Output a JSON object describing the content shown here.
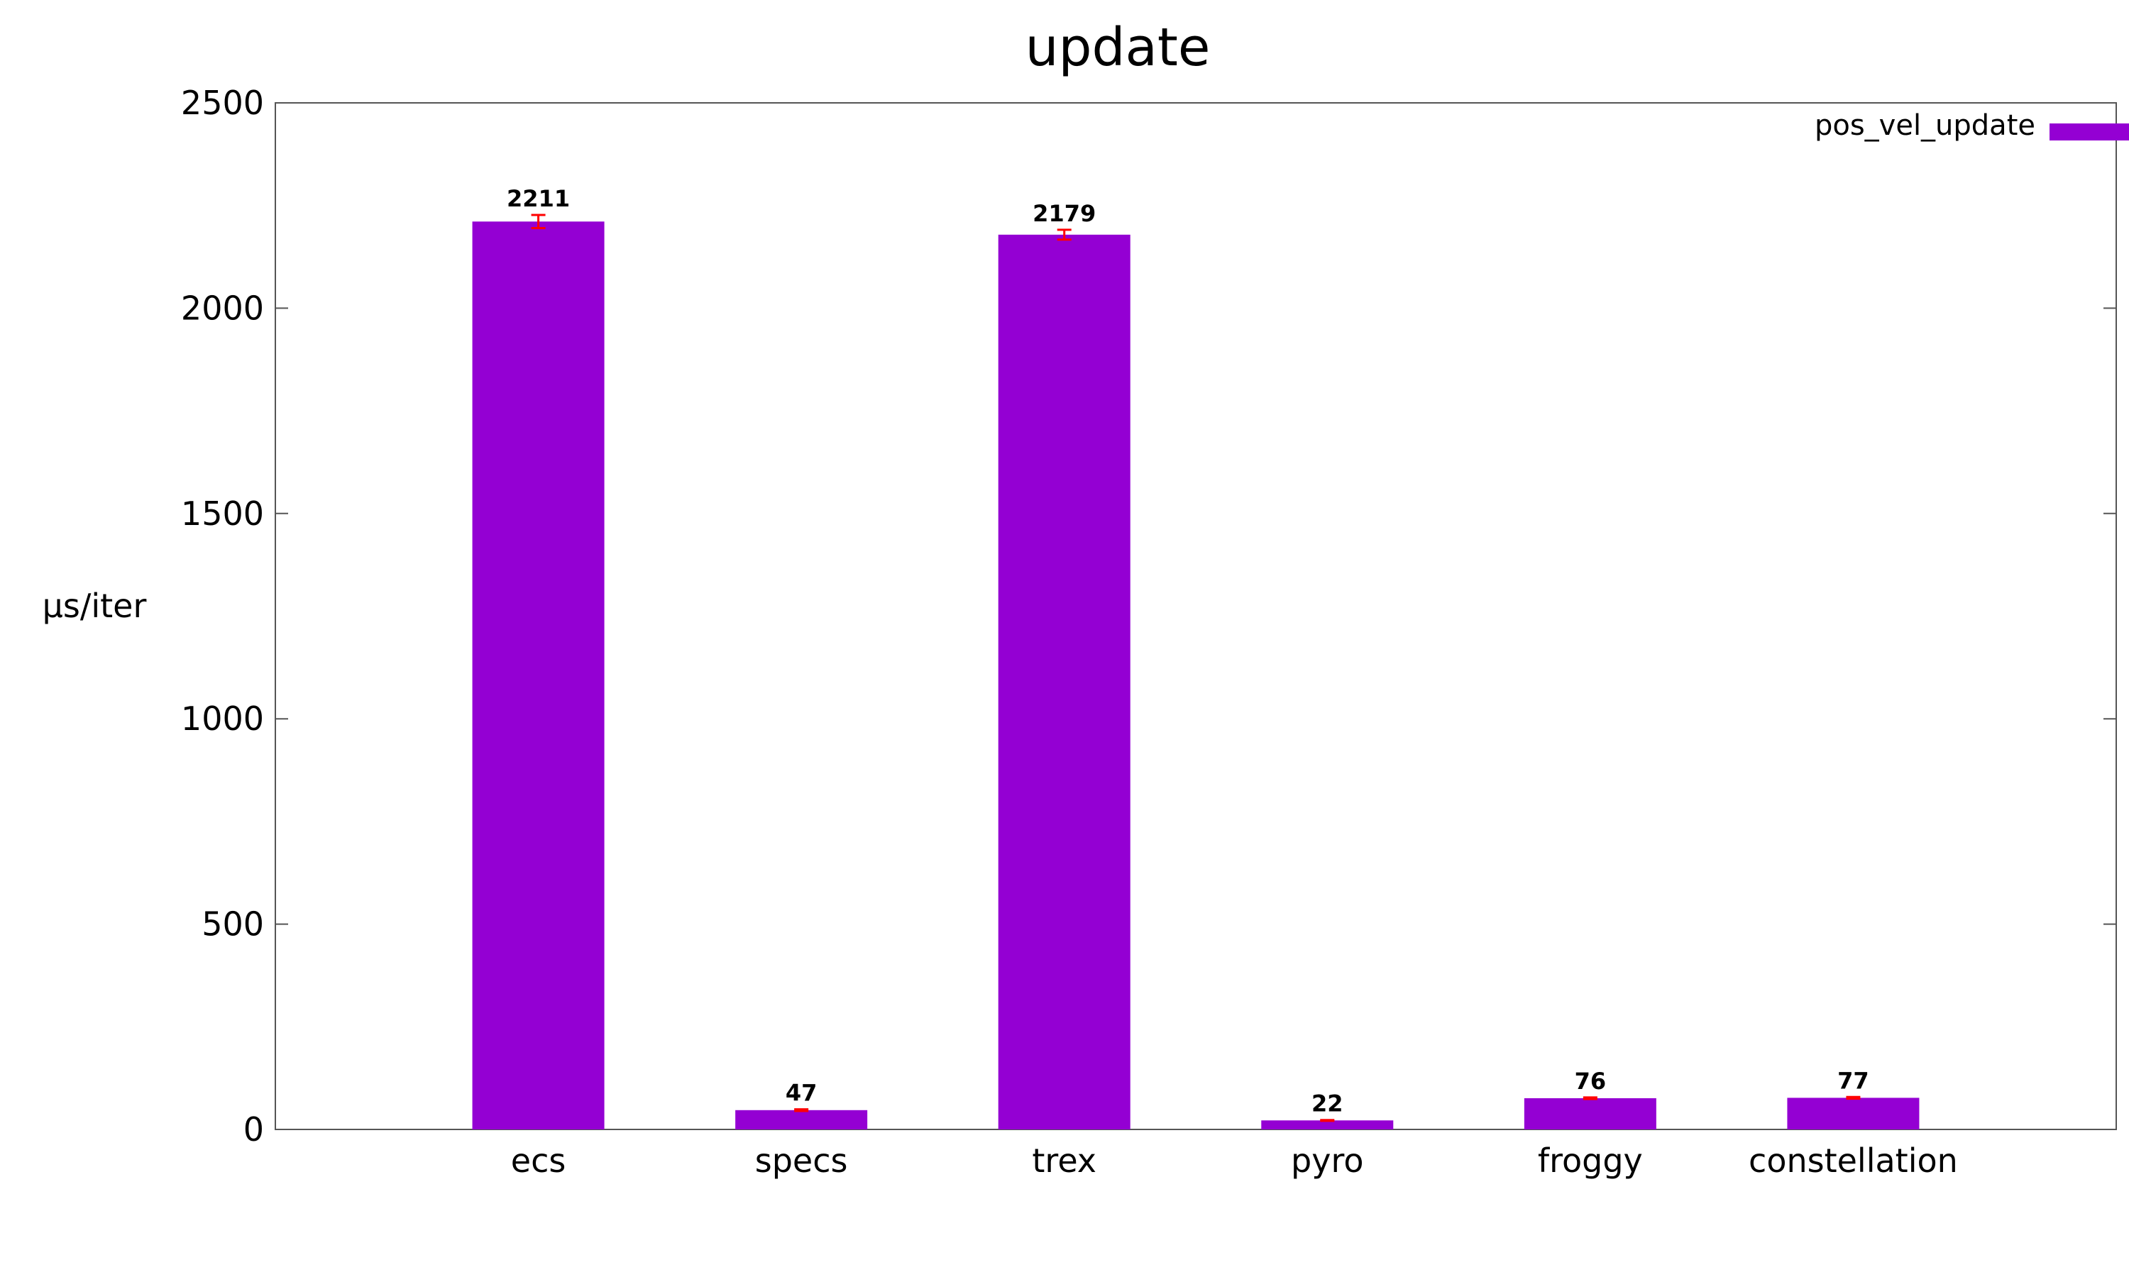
{
  "chart_data": {
    "type": "bar",
    "title": "update",
    "xlabel": "",
    "ylabel": "µs/iter",
    "categories": [
      "ecs",
      "specs",
      "trex",
      "pyro",
      "froggy",
      "constellation"
    ],
    "series": [
      {
        "name": "pos_vel_update",
        "values": [
          2211,
          47,
          2179,
          22,
          76,
          77
        ],
        "errors": [
          16,
          2,
          12,
          1,
          2,
          2
        ],
        "color": "#9400d3"
      }
    ],
    "data_labels": [
      "2211",
      "47",
      "2179",
      "22",
      "76",
      "77"
    ],
    "ylim": [
      0,
      2500
    ],
    "yticks": [
      0,
      500,
      1000,
      1500,
      2000,
      2500
    ],
    "grid": false,
    "legend_position": "top-right",
    "error_bar_color": "#ff0000"
  }
}
